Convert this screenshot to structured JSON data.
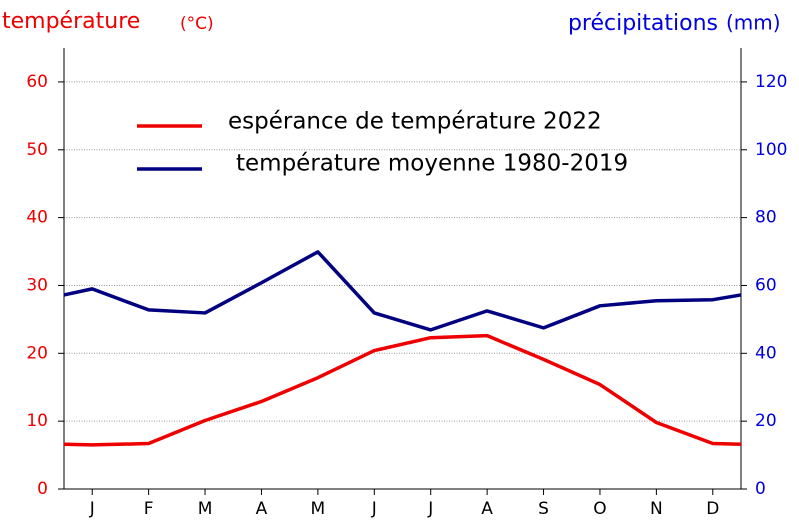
{
  "chart_data": {
    "type": "line",
    "y_label": "température",
    "y_unit": "(°C)",
    "y2_label": "précipitations",
    "y2_unit": "(mm)",
    "x": [
      0.5,
      1,
      2,
      3,
      4,
      5,
      6,
      7,
      8,
      9,
      10,
      11,
      12,
      12.5
    ],
    "xlim": [
      0.5,
      12.5
    ],
    "xticks": [
      {
        "value": 1,
        "label": "J"
      },
      {
        "value": 2,
        "label": "F"
      },
      {
        "value": 3,
        "label": "M"
      },
      {
        "value": 4,
        "label": "A"
      },
      {
        "value": 5,
        "label": "M"
      },
      {
        "value": 6,
        "label": "J"
      },
      {
        "value": 7,
        "label": "J"
      },
      {
        "value": 8,
        "label": "A"
      },
      {
        "value": 9,
        "label": "S"
      },
      {
        "value": 10,
        "label": "O"
      },
      {
        "value": 11,
        "label": "N"
      },
      {
        "value": 12,
        "label": "D"
      }
    ],
    "ylim": [
      0,
      65
    ],
    "yticks": [
      0,
      10,
      20,
      30,
      40,
      50,
      60
    ],
    "y2lim": [
      0,
      130
    ],
    "y2ticks": [
      0,
      20,
      40,
      60,
      80,
      100,
      120
    ],
    "grid": true,
    "series": [
      {
        "name": "espérance de température 2022",
        "color": "#ee0000",
        "values": [
          6.6,
          6.5,
          6.7,
          10.1,
          12.9,
          16.4,
          20.4,
          22.3,
          22.6,
          19.1,
          15.4,
          9.8,
          6.7,
          6.6
        ]
      },
      {
        "name": "température moyenne 1980-2019",
        "color": "#000080",
        "axis": "y2",
        "values": [
          57.2,
          59,
          52.8,
          51.9,
          60.8,
          69.9,
          51.9,
          46.9,
          52.5,
          47.5,
          54,
          55.5,
          55.8,
          57.2
        ]
      }
    ]
  }
}
